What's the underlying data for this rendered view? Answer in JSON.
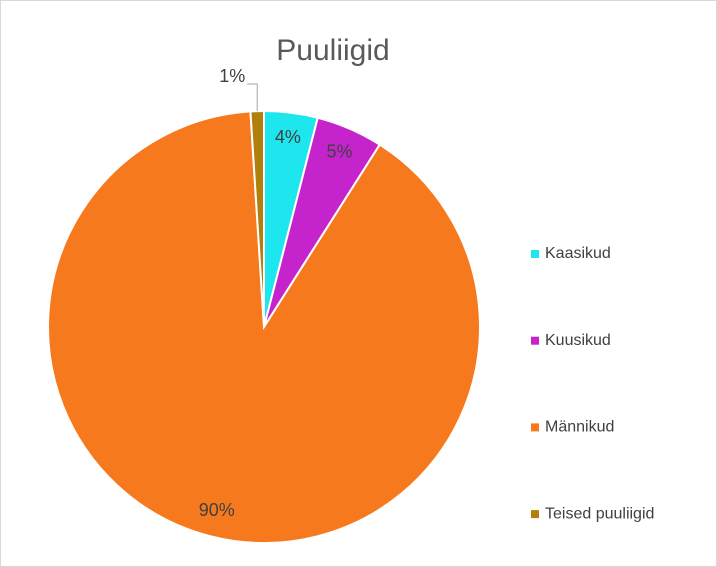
{
  "chart_data": {
    "type": "pie",
    "title": "Puuliigid",
    "categories": [
      "Kaasikud",
      "Kuusikud",
      "Männikud",
      "Teised puuliigid"
    ],
    "values": [
      4,
      5,
      90,
      1
    ],
    "value_labels": [
      "4%",
      "5%",
      "90%",
      "1%"
    ],
    "colors": [
      "#1de6ee",
      "#c524cc",
      "#f7791d",
      "#b07f0c"
    ],
    "legend": "right"
  }
}
